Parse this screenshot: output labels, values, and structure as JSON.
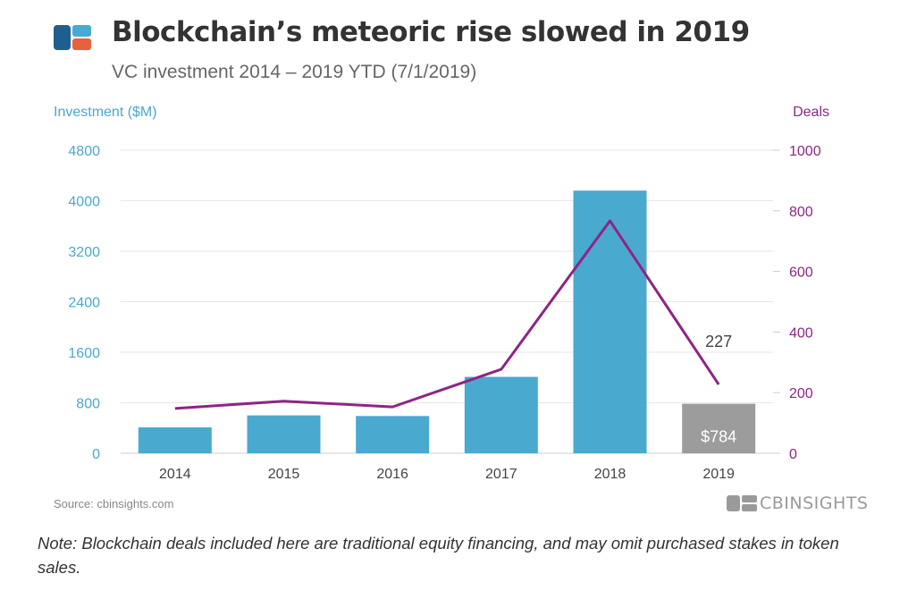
{
  "header": {
    "title": "Blockchain’s meteoric rise slowed in 2019",
    "subtitle": "VC investment 2014 – 2019 YTD (7/1/2019)"
  },
  "logo": {
    "icon": "cb-insights-logo-icon"
  },
  "colors": {
    "bar": "#4aa9cf",
    "bar_ytd": "#9c9c9c",
    "line": "#8e2585",
    "grid": "#e6e6e6"
  },
  "chart_data": {
    "type": "bar+line",
    "title": "Blockchain’s meteoric rise slowed in 2019",
    "subtitle": "VC investment 2014 – 2019 YTD (7/1/2019)",
    "categories": [
      "2014",
      "2015",
      "2016",
      "2017",
      "2018",
      "2019"
    ],
    "left_axis": {
      "label": "Investment ($M)",
      "range": [
        0,
        4800
      ],
      "ticks": [
        "0",
        "800",
        "1600",
        "2400",
        "3200",
        "4000",
        "4800"
      ]
    },
    "right_axis": {
      "label": "Deals",
      "range": [
        0,
        1000
      ],
      "ticks": [
        "0",
        "200",
        "400",
        "600",
        "800",
        "1000"
      ]
    },
    "series": [
      {
        "name": "Investment ($M)",
        "type": "bar",
        "axis": "left",
        "values": [
          410,
          600,
          590,
          1210,
          4160,
          784
        ]
      },
      {
        "name": "Deals",
        "type": "line",
        "axis": "right",
        "values": [
          148,
          172,
          153,
          277,
          767,
          227
        ]
      }
    ],
    "annotations": {
      "bar_2019_label": "$784",
      "deals_2019_label": "227"
    },
    "grid": true
  },
  "footer": {
    "source": "Source: cbinsights.com",
    "brand": "CBINSIGHTS"
  },
  "note": "Note: Blockchain deals included here are traditional equity financing, and may omit purchased stakes in token sales."
}
